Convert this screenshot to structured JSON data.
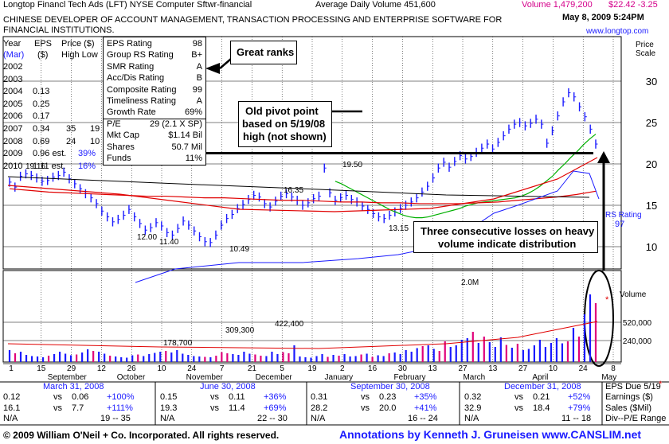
{
  "header": {
    "line1_left": "Longtop Financl Tech Ads  (LFT)  NYSE  Computer Sftwr-financial",
    "avg_volume": "Average Daily Volume 451,600",
    "volume": "Volume 1,479,200",
    "price_change": "$22.42 -3.25",
    "description_1": "CHINESE DEVELOPER OF ACCOUNT MANAGEMENT, TRANSACTION PROCESSING AND ENTERPRISE SOFTWARE FOR",
    "description_2": "FINANCIAL INSTITUTIONS.",
    "date": "May 8, 2009 5:24PM",
    "website": "www.longtop.com"
  },
  "eps_table": {
    "headers": [
      "Year",
      "EPS",
      "Price ($)",
      "(Mar)",
      "($)",
      "High Low"
    ],
    "rows": [
      {
        "year": "2002",
        "eps": "",
        "high": "",
        "low": ""
      },
      {
        "year": "2003",
        "eps": "",
        "high": "",
        "low": ""
      },
      {
        "year": "2004",
        "eps": "0.13",
        "high": "",
        "low": ""
      },
      {
        "year": "2005",
        "eps": "0.25",
        "high": "",
        "low": ""
      },
      {
        "year": "2006",
        "eps": "0.17",
        "high": "",
        "low": ""
      },
      {
        "year": "2007",
        "eps": "0.34",
        "high": "35",
        "low": "19"
      },
      {
        "year": "2008",
        "eps": "0.69",
        "high": "24",
        "low": "10"
      },
      {
        "year": "2009",
        "eps": "0.96 est.",
        "high": "39%",
        "low": ""
      },
      {
        "year": "2010",
        "eps": "1.11 est.",
        "high": "16%",
        "low": ""
      }
    ]
  },
  "ratings": [
    {
      "label": "EPS Rating",
      "value": "98"
    },
    {
      "label": "Group RS Rating",
      "value": "B+"
    },
    {
      "label": "SMR Rating",
      "value": "A"
    },
    {
      "label": "Acc/Dis Rating",
      "value": "B"
    },
    {
      "label": "Composite Rating",
      "value": "99"
    },
    {
      "label": "Timeliness Rating",
      "value": "A"
    },
    {
      "label": "Growth Rate",
      "value": "69%"
    }
  ],
  "fundamentals": [
    {
      "label": "P/E",
      "value": "29 (2.1 X SP)"
    },
    {
      "label": "Mkt Cap",
      "value": "$1.14 Bil"
    },
    {
      "label": "Shares",
      "value": "50.7 Mil"
    },
    {
      "label": "Funds",
      "value": "11%"
    }
  ],
  "annotations": {
    "great_ranks": "Great ranks",
    "pivot_1": "Old pivot point",
    "pivot_2": "based on 5/19/08",
    "pivot_3": "high (not shown)",
    "distribution_1": "Three consecutive losses on heavy",
    "distribution_2": "volume indicate distribution",
    "rs_rating_label": "RS Rating",
    "rs_rating_value": "97",
    "volume_label": "Volume",
    "price_scale_1": "Price",
    "price_scale_2": "Scale",
    "peak_volume": "2.0M",
    "asterisk": "*"
  },
  "price_point_labels": [
    "19.16",
    "12.00",
    "11.40",
    "10.49",
    "16.35",
    "19.50",
    "13.15"
  ],
  "chart_data": {
    "type": "line",
    "price_axis": {
      "ticks": [
        10,
        15,
        20,
        25,
        30
      ]
    },
    "volume_axis": {
      "ticks": [
        "240,000",
        "520,000"
      ]
    },
    "x_tick_labels": [
      "1",
      "15",
      "29",
      "12",
      "26",
      "10",
      "24",
      "7",
      "21",
      "5",
      "19",
      "2",
      "16",
      "30",
      "13",
      "27",
      "13",
      "27",
      "10",
      "24",
      "8"
    ],
    "month_labels": [
      "September",
      "October",
      "November",
      "December",
      "January",
      "February",
      "March",
      "April",
      "May"
    ],
    "volume_labels": [
      "178,700",
      "309,300",
      "422,400"
    ],
    "pivot_price": 21.3,
    "price_series": [
      17.8,
      17.2,
      18.5,
      18.8,
      18.6,
      18.3,
      17.9,
      18.0,
      18.4,
      18.6,
      19.0,
      18.2,
      17.6,
      17.0,
      16.4,
      15.9,
      15.2,
      14.3,
      13.6,
      13.0,
      13.3,
      13.8,
      14.5,
      13.6,
      12.8,
      12.0,
      12.3,
      12.9,
      12.5,
      11.7,
      11.4,
      12.2,
      13.1,
      12.6,
      11.9,
      11.2,
      10.6,
      10.5,
      11.4,
      12.6,
      13.4,
      13.9,
      14.6,
      15.1,
      15.7,
      16.2,
      16.0,
      15.2,
      14.8,
      15.5,
      16.1,
      16.4,
      16.0,
      15.6,
      15.0,
      15.3,
      15.8,
      16.1,
      19.5,
      16.5,
      15.6,
      15.9,
      16.2,
      15.7,
      15.4,
      14.9,
      14.5,
      14.0,
      13.6,
      13.4,
      13.8,
      14.2,
      14.6,
      15.0,
      15.4,
      15.9,
      16.6,
      17.3,
      18.3,
      19.5,
      20.2,
      19.6,
      20.3,
      21.0,
      20.6,
      20.9,
      21.4,
      21.9,
      22.4,
      21.8,
      22.6,
      23.4,
      24.2,
      24.8,
      25.0,
      24.6,
      24.9,
      25.4,
      24.8,
      22.5,
      24.0,
      25.8,
      27.5,
      28.6,
      28.1,
      26.9,
      25.7,
      24.2,
      22.4
    ],
    "ma50_series": [
      17.9,
      17.6,
      17.2,
      16.8,
      16.4,
      16.0,
      15.6,
      15.2,
      14.8,
      14.4,
      14.1,
      13.8,
      13.6,
      13.5,
      13.5,
      13.6,
      13.8,
      14.0,
      14.2,
      14.4,
      14.6,
      14.9,
      15.1,
      15.3,
      15.4,
      15.5,
      15.6,
      15.7,
      15.8,
      15.9,
      16.1,
      16.4,
      16.8,
      17.3,
      17.9,
      18.5,
      19.3,
      20.0,
      20.8,
      21.5,
      22.3,
      23.0,
      23.6
    ],
    "ma200_series": [
      17.0,
      16.8,
      16.6,
      16.5,
      16.4,
      16.3,
      16.2,
      16.1,
      16.1,
      16.0,
      15.9,
      15.9,
      15.8,
      15.7,
      15.6,
      15.6,
      15.5,
      15.4,
      15.4,
      15.3,
      15.3,
      15.2,
      15.2,
      15.2,
      15.3,
      15.4,
      15.6,
      15.8,
      16.0,
      16.3,
      16.7
    ],
    "volume_series": [
      300,
      220,
      260,
      180,
      150,
      140,
      120,
      160,
      200,
      260,
      210,
      170,
      190,
      240,
      320,
      280,
      260,
      210,
      160,
      140,
      120,
      110,
      170,
      190,
      150,
      200,
      230,
      260,
      280,
      240,
      300,
      210,
      180,
      150,
      140,
      130,
      120,
      160,
      250,
      220,
      200,
      180,
      260,
      210,
      190,
      160,
      150,
      260,
      200,
      250,
      220,
      420,
      140,
      120,
      110,
      150,
      200,
      130,
      180,
      160,
      200,
      140,
      150,
      190,
      210,
      130,
      170,
      150,
      220,
      240,
      200,
      300,
      260,
      350,
      400,
      420,
      330,
      280,
      520,
      380,
      420,
      560,
      600,
      760,
      480,
      640,
      500,
      380,
      620,
      430,
      360,
      460,
      300,
      330,
      420,
      560,
      380,
      480,
      600,
      470,
      520,
      860,
      640,
      1200,
      1700,
      1480
    ]
  },
  "bottom_table": {
    "quarters": [
      "March 31, 2008",
      "June 30, 2008",
      "September 30, 2008",
      "December 31, 2008"
    ],
    "eps_due": "EPS Due 5/19",
    "eps_due_mark": "*",
    "row_labels": [
      "Earnings ($)",
      "Sales ($Mil)",
      "Div--P/E Range"
    ],
    "q1": {
      "e1": "0.12",
      "vs1": "vs",
      "e2": "0.06",
      "ep": "+100%",
      "s1": "16.1",
      "vs2": "vs",
      "s2": "7.7",
      "sp": "+111%",
      "div": "N/A",
      "pe": "19 -- 35"
    },
    "q2": {
      "e1": "0.15",
      "vs1": "vs",
      "e2": "0.11",
      "ep": "+36%",
      "s1": "19.3",
      "vs2": "vs",
      "s2": "11.4",
      "sp": "+69%",
      "div": "N/A",
      "pe": "22 -- 30"
    },
    "q3": {
      "e1": "0.31",
      "vs1": "vs",
      "e2": "0.23",
      "ep": "+35%",
      "s1": "28.2",
      "vs2": "vs",
      "s2": "20.0",
      "sp": "+41%",
      "div": "N/A",
      "pe": "16 -- 24"
    },
    "q4": {
      "e1": "0.32",
      "vs1": "vs",
      "e2": "0.21",
      "ep": "+52%",
      "s1": "32.9",
      "vs2": "vs",
      "s2": "18.4",
      "sp": "+79%",
      "div": "N/A",
      "pe": "11 -- 18"
    }
  },
  "footer": {
    "copyright": "© 2009 William O'Neil + Co. Incorporated. All rights reserved.",
    "annotations": "Annotations by Kenneth J. Gruneisen www.CANSLIM.net"
  },
  "colors": {
    "price_bar": "#1a1aff",
    "ma50": "#00b000",
    "ma200": "#e00000",
    "long_ma": "#000000",
    "rs_line": "#1a1aff",
    "volume_up": "#1a1aff",
    "volume_down": "#e0007a"
  }
}
